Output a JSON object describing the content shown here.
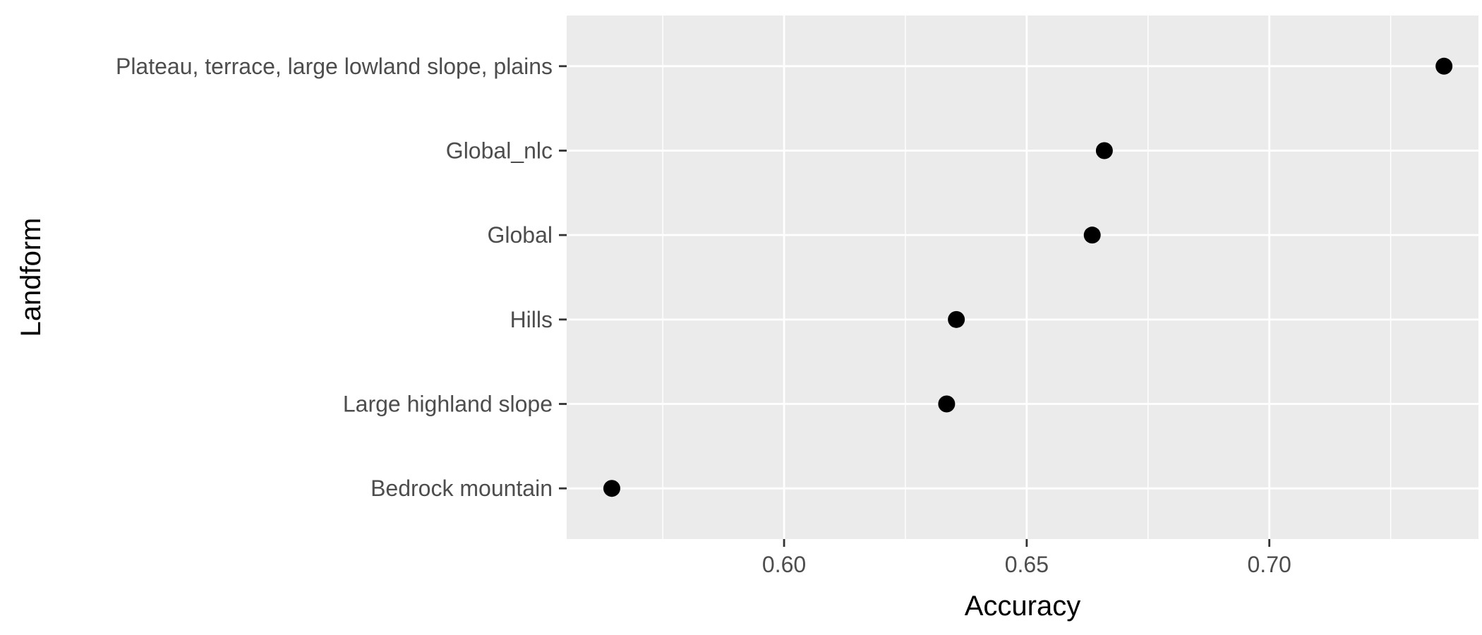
{
  "chart_data": {
    "type": "scatter",
    "title": "",
    "xlabel": "Accuracy",
    "ylabel": "Landform",
    "xlim": [
      0.5552,
      0.7431
    ],
    "x_ticks": [
      0.6,
      0.65,
      0.7
    ],
    "x_tick_labels": [
      "0.60",
      "0.65",
      "0.70"
    ],
    "categories": [
      "Bedrock mountain",
      "Large highland slope",
      "Hills",
      "Global",
      "Global_nlc",
      "Plateau, terrace, large lowland slope, plains"
    ],
    "values": [
      0.5645,
      0.6335,
      0.6355,
      0.6635,
      0.666,
      0.736
    ],
    "grid": true,
    "legend": "none",
    "colors": {
      "panel_background": "#ebebeb",
      "grid_major": "#ffffff",
      "point": "#000000",
      "tick_label": "#4d4d4d",
      "axis_title": "#000000",
      "tick_mark": "#333333"
    }
  }
}
